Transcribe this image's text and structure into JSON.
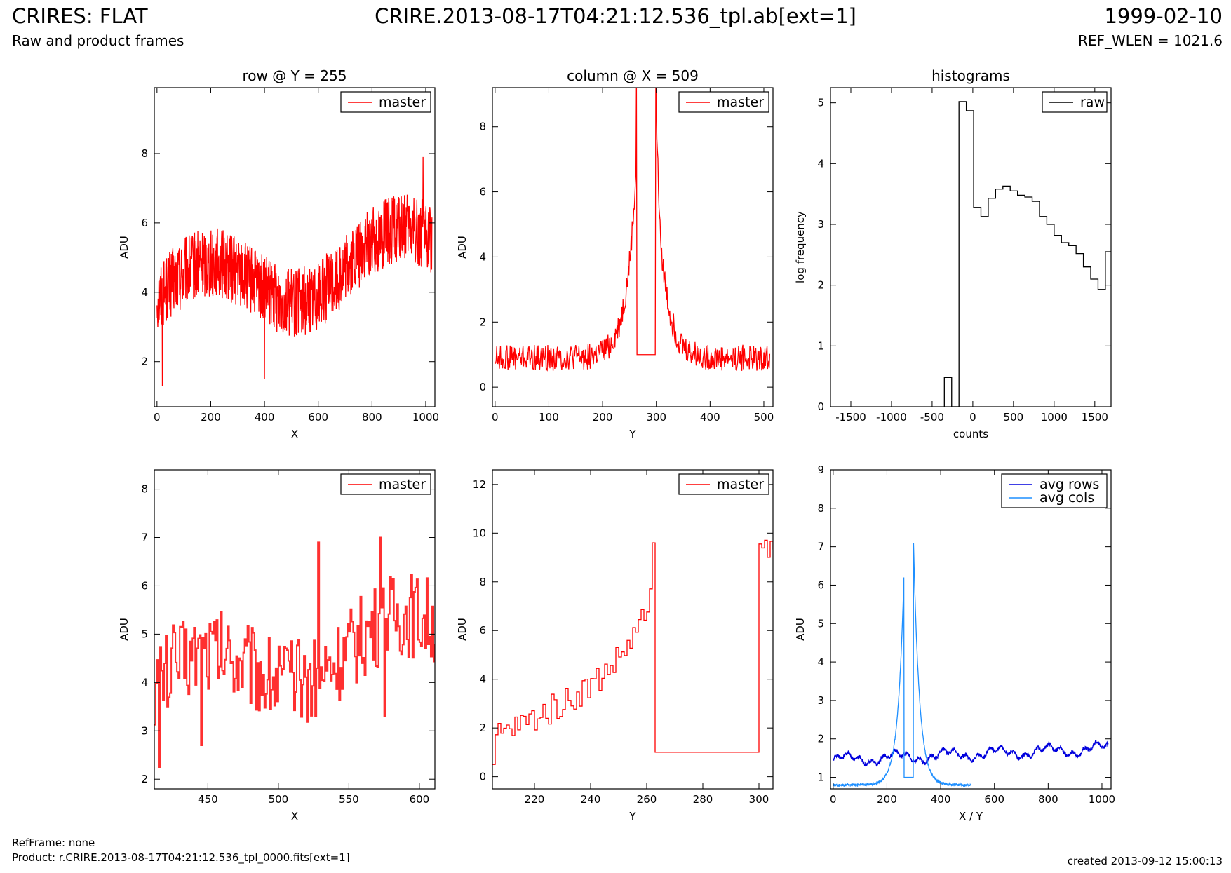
{
  "header": {
    "title": "CRIRES: FLAT",
    "subtitle": "Raw and product frames",
    "file": "CRIRE.2013-08-17T04:21:12.536_tpl.ab[ext=1]",
    "date": "1999-02-10",
    "ref_wlen": "REF_WLEN = 1021.6"
  },
  "footer": {
    "ref_frame": "RefFrame: none",
    "product": "Product: r.CRIRE.2013-08-17T04:21:12.536_tpl_0000.fits[ext=1]",
    "created": "created 2013-09-12 15:00:13"
  },
  "colors": {
    "master": "#ff0000",
    "master_zoom": "#ff3030",
    "raw": "#000000",
    "avg_rows": "#0000dd",
    "avg_cols": "#1e8fff"
  },
  "chart_data": [
    {
      "id": "row-full",
      "type": "line",
      "title": "row @ Y = 255",
      "xlabel": "X",
      "ylabel": "ADU",
      "xlim": [
        -10,
        1034
      ],
      "ylim": [
        0.7,
        9.9
      ],
      "xticks": [
        "0",
        "200",
        "400",
        "600",
        "800",
        "1000"
      ],
      "yticks": [
        "2",
        "4",
        "6",
        "8"
      ],
      "legend": "top-right",
      "grid": false,
      "series": [
        {
          "name": "master",
          "generator": "noise",
          "n": 1024,
          "trend": [
            3.8,
            5.2
          ],
          "amp": 0.8,
          "noise": 1.0,
          "spikes": [
            [
              20,
              1.3
            ],
            [
              400,
              1.5
            ],
            [
              990,
              7.9
            ]
          ]
        }
      ]
    },
    {
      "id": "col-full",
      "type": "line",
      "title": "column @ X = 509",
      "xlabel": "Y",
      "ylabel": "ADU",
      "xlim": [
        -5,
        517
      ],
      "ylim": [
        -0.6,
        9.2
      ],
      "xticks": [
        "0",
        "100",
        "200",
        "300",
        "400",
        "500"
      ],
      "yticks": [
        "0",
        "2",
        "4",
        "6",
        "8"
      ],
      "legend": "top-right",
      "grid": false,
      "series": [
        {
          "name": "master",
          "generator": "peak",
          "n": 512,
          "base": 0.9,
          "noise": 0.4,
          "peak_start": 263,
          "peak_end": 299,
          "peak_height": 9.6,
          "gap_value": 1.0
        }
      ]
    },
    {
      "id": "hist",
      "type": "histogram",
      "title": "histograms",
      "xlabel": "counts",
      "ylabel": "log frequency",
      "xlim": [
        -1750,
        1700
      ],
      "ylim": [
        0,
        5.25
      ],
      "xticks": [
        "-1500",
        "-1000",
        "-500",
        "0",
        "500",
        "1000",
        "1500"
      ],
      "yticks": [
        "0",
        "1",
        "2",
        "3",
        "4",
        "5"
      ],
      "legend": "top-right",
      "grid": false,
      "series": [
        {
          "name": "raw",
          "bin_width": 90,
          "bins": [
            [
              -350,
              0.48
            ],
            [
              -170,
              5.02
            ],
            [
              -80,
              4.87
            ],
            [
              10,
              3.28
            ],
            [
              100,
              3.13
            ],
            [
              190,
              3.43
            ],
            [
              280,
              3.58
            ],
            [
              370,
              3.63
            ],
            [
              460,
              3.55
            ],
            [
              550,
              3.48
            ],
            [
              640,
              3.45
            ],
            [
              730,
              3.38
            ],
            [
              820,
              3.13
            ],
            [
              910,
              3.0
            ],
            [
              1000,
              2.82
            ],
            [
              1090,
              2.7
            ],
            [
              1180,
              2.65
            ],
            [
              1270,
              2.52
            ],
            [
              1360,
              2.3
            ],
            [
              1450,
              2.1
            ],
            [
              1540,
              1.93
            ],
            [
              1630,
              2.55
            ]
          ]
        }
      ]
    },
    {
      "id": "row-zoom",
      "type": "line",
      "title": "",
      "xlabel": "X",
      "ylabel": "ADU",
      "xlim": [
        412,
        611
      ],
      "ylim": [
        1.8,
        8.4
      ],
      "xticks": [
        "450",
        "500",
        "550",
        "600"
      ],
      "yticks": [
        "2",
        "3",
        "4",
        "5",
        "6",
        "7",
        "8"
      ],
      "legend": "top-right",
      "grid": false,
      "series": [
        {
          "name": "master",
          "generator": "noise",
          "n": 200,
          "x0": 412,
          "trend": [
            4.0,
            5.0
          ],
          "amp": 0.5,
          "noise": 0.9,
          "spikes": [
            [
              415,
              2.25
            ],
            [
              445,
              2.7
            ],
            [
              528,
              6.9
            ],
            [
              572,
              7.0
            ],
            [
              575,
              3.3
            ]
          ]
        }
      ]
    },
    {
      "id": "col-zoom",
      "type": "line",
      "title": "",
      "xlabel": "Y",
      "ylabel": "ADU",
      "xlim": [
        205,
        305
      ],
      "ylim": [
        -0.5,
        12.6
      ],
      "xticks": [
        "220",
        "240",
        "260",
        "280",
        "300"
      ],
      "yticks": [
        "0",
        "2",
        "4",
        "6",
        "8",
        "10",
        "12"
      ],
      "legend": "top-right",
      "grid": false,
      "series": [
        {
          "name": "master",
          "generator": "zoompeak",
          "x0": 205,
          "x1": 305,
          "noise": 0.6,
          "peak_start": 263,
          "peak_end": 299,
          "peak_height": 9.6,
          "gap_value": 1.0
        }
      ]
    },
    {
      "id": "avg",
      "type": "line",
      "title": "",
      "xlabel": "X / Y",
      "ylabel": "ADU",
      "xlim": [
        -10,
        1034
      ],
      "ylim": [
        0.7,
        9.0
      ],
      "xticks": [
        "0",
        "200",
        "400",
        "600",
        "800",
        "1000"
      ],
      "yticks": [
        "1",
        "2",
        "3",
        "4",
        "5",
        "6",
        "7",
        "8",
        "9"
      ],
      "legend": "top-right",
      "grid": false,
      "series": [
        {
          "name": "avg rows",
          "generator": "wave",
          "n": 1024,
          "base": 1.45,
          "trend": 0.3,
          "amp": 0.12,
          "noise": 0.05
        },
        {
          "name": "avg cols",
          "generator": "avgcols",
          "n": 512,
          "base": 0.8,
          "peak_start": 263,
          "peak_end": 299,
          "peak_low": 6.2,
          "peak_high": 7.1,
          "gap_value": 1.0
        }
      ]
    }
  ]
}
